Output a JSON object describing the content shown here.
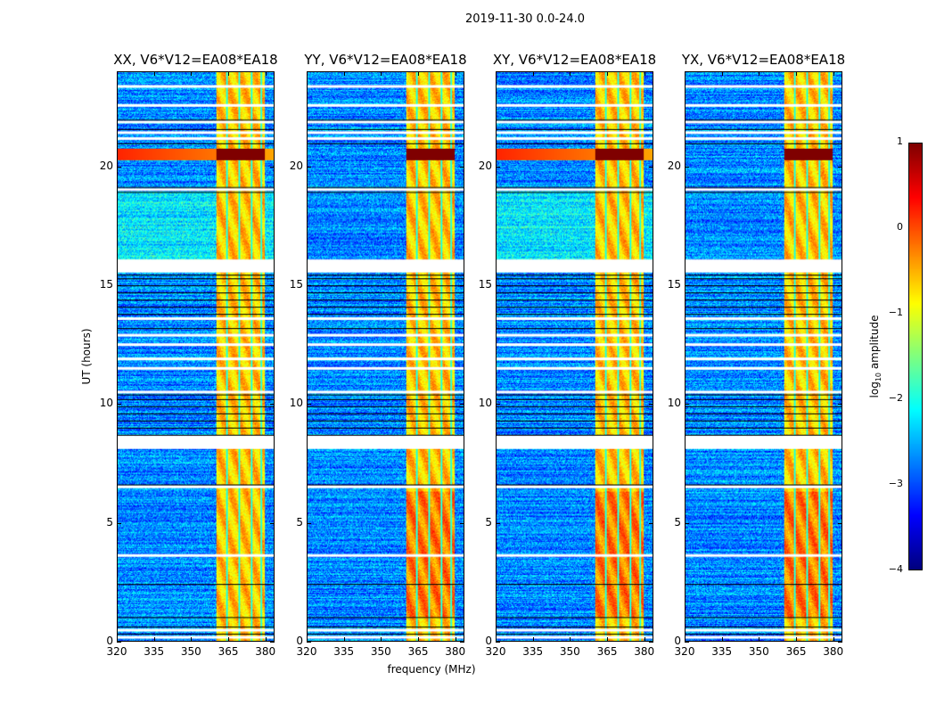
{
  "chart_data": {
    "type": "heatmap",
    "title": "2019-11-30 0.0-24.0",
    "xlabel": "frequency (MHz)",
    "ylabel": "UT (hours)",
    "xlim": [
      320,
      383.7
    ],
    "ylim": [
      0,
      24
    ],
    "xticks": [
      320,
      335,
      350,
      365,
      380
    ],
    "yticks": [
      0,
      5,
      10,
      15,
      20
    ],
    "grid": false,
    "colormap": "jet",
    "panels": [
      {
        "title": "XX, V6*V12=EA08*EA18",
        "rfi_row_full_width": true
      },
      {
        "title": "YY, V6*V12=EA08*EA18",
        "rfi_row_full_width": false
      },
      {
        "title": "XY, V6*V12=EA08*EA18",
        "rfi_row_full_width": true
      },
      {
        "title": "YX, V6*V12=EA08*EA18",
        "rfi_row_full_width": false
      }
    ],
    "features": {
      "background_log10_amplitude": -2.7,
      "bright_band_mhz": [
        360.3,
        379.8
      ],
      "bright_band_log10_amplitude": -0.6,
      "subband_edges_mhz": [
        364.5,
        369.5,
        374.5,
        378.5
      ],
      "strong_rfi_hours": [
        20.3,
        20.8
      ],
      "strong_rfi_log10_amplitude": 1.0,
      "flagged_hours": [
        0.15,
        0.45,
        3.6,
        6.5,
        8.25,
        8.45,
        8.6,
        10.5,
        11.5,
        11.9,
        12.5,
        12.9,
        13.6,
        15.6,
        15.8,
        16.0,
        19.05,
        21.2,
        21.45,
        21.9,
        22.6,
        23.4
      ],
      "black_line_hours": [
        0.3,
        0.6,
        1.0,
        2.4,
        6.6,
        8.7,
        9.0,
        9.3,
        9.6,
        9.9,
        10.2,
        10.4,
        13.2,
        13.8,
        14.1,
        14.4,
        14.7,
        15.0,
        15.3,
        15.45,
        18.95,
        19.15,
        21.0,
        21.6,
        22.0
      ]
    },
    "colorbar": {
      "label": "log10 amplitude",
      "label_main": "log",
      "label_sub": "10",
      "label_rest": " amplitude",
      "range": [
        -4,
        1
      ],
      "ticks": [
        1,
        0,
        -1,
        -2,
        -3,
        -4
      ],
      "tick_labels": [
        "1",
        "0",
        "−1",
        "−2",
        "−3",
        "−4"
      ]
    }
  }
}
